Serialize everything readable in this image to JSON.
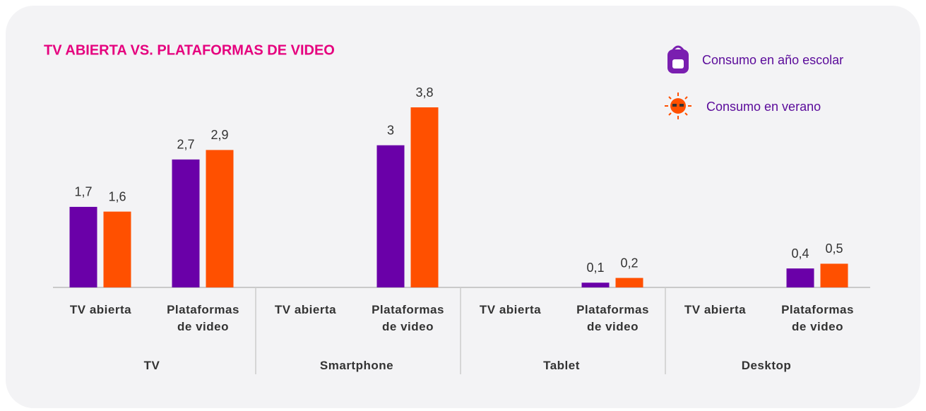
{
  "chart_data": {
    "type": "bar",
    "title": "TV ABIERTA VS. PLATAFORMAS DE VIDEO",
    "categories": [
      "TV abierta",
      "Plataformas de video",
      "TV abierta",
      "Plataformas de video",
      "TV abierta",
      "Plataformas de video",
      "TV abierta",
      "Plataformas de video"
    ],
    "groups": [
      "TV",
      "Smartphone",
      "Tablet",
      "Desktop"
    ],
    "series": [
      {
        "name": "Consumo en año escolar",
        "color": "#6a00a8",
        "values": [
          1.7,
          2.7,
          null,
          3,
          null,
          0.1,
          null,
          0.4
        ],
        "value_labels": [
          "1,7",
          "2,7",
          null,
          "3",
          null,
          "0,1",
          null,
          "0,4"
        ]
      },
      {
        "name": "Consumo en verano",
        "color": "#ff5000",
        "values": [
          1.6,
          2.9,
          null,
          3.8,
          null,
          0.2,
          null,
          0.5
        ],
        "value_labels": [
          "1,6",
          "2,9",
          null,
          "3,8",
          null,
          "0,2",
          null,
          "0,5"
        ]
      }
    ],
    "legend": "top-right",
    "grid": false
  }
}
